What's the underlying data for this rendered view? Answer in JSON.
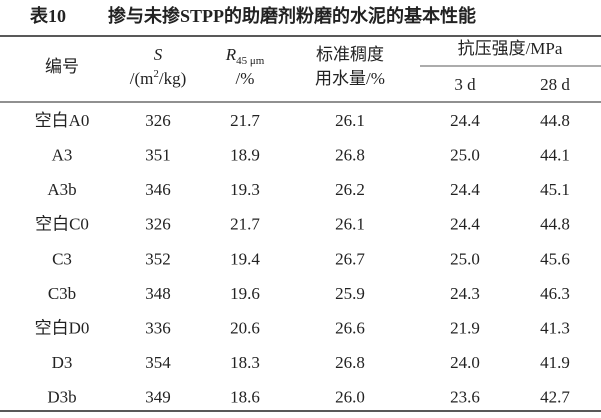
{
  "title": {
    "number": "表10",
    "text": "掺与未掺STPP的助磨剂粉磨的水泥的基本性能"
  },
  "table": {
    "header": {
      "id": "编号",
      "s": {
        "symbol": "S",
        "unit_prefix": "/(m",
        "unit_sup": "2",
        "unit_suffix": "/kg)"
      },
      "r": {
        "symbol": "R",
        "subscript": "45 μm",
        "unit": "/%"
      },
      "water": {
        "line1": "标准稠度",
        "line2": "用水量/%"
      },
      "strength": {
        "label": "抗压强度/MPa",
        "d3": "3 d",
        "d28": "28 d"
      }
    },
    "rows": [
      [
        "空白A0",
        "326",
        "21.7",
        "26.1",
        "24.4",
        "44.8"
      ],
      [
        "A3",
        "351",
        "18.9",
        "26.8",
        "25.0",
        "44.1"
      ],
      [
        "A3b",
        "346",
        "19.3",
        "26.2",
        "24.4",
        "45.1"
      ],
      [
        "空白C0",
        "326",
        "21.7",
        "26.1",
        "24.4",
        "44.8"
      ],
      [
        "C3",
        "352",
        "19.4",
        "26.7",
        "25.0",
        "45.6"
      ],
      [
        "C3b",
        "348",
        "19.6",
        "25.9",
        "24.3",
        "46.3"
      ],
      [
        "空白D0",
        "336",
        "20.6",
        "26.6",
        "21.9",
        "41.3"
      ],
      [
        "D3",
        "354",
        "18.3",
        "26.8",
        "24.0",
        "41.9"
      ],
      [
        "D3b",
        "349",
        "18.6",
        "26.0",
        "23.6",
        "42.7"
      ]
    ]
  }
}
